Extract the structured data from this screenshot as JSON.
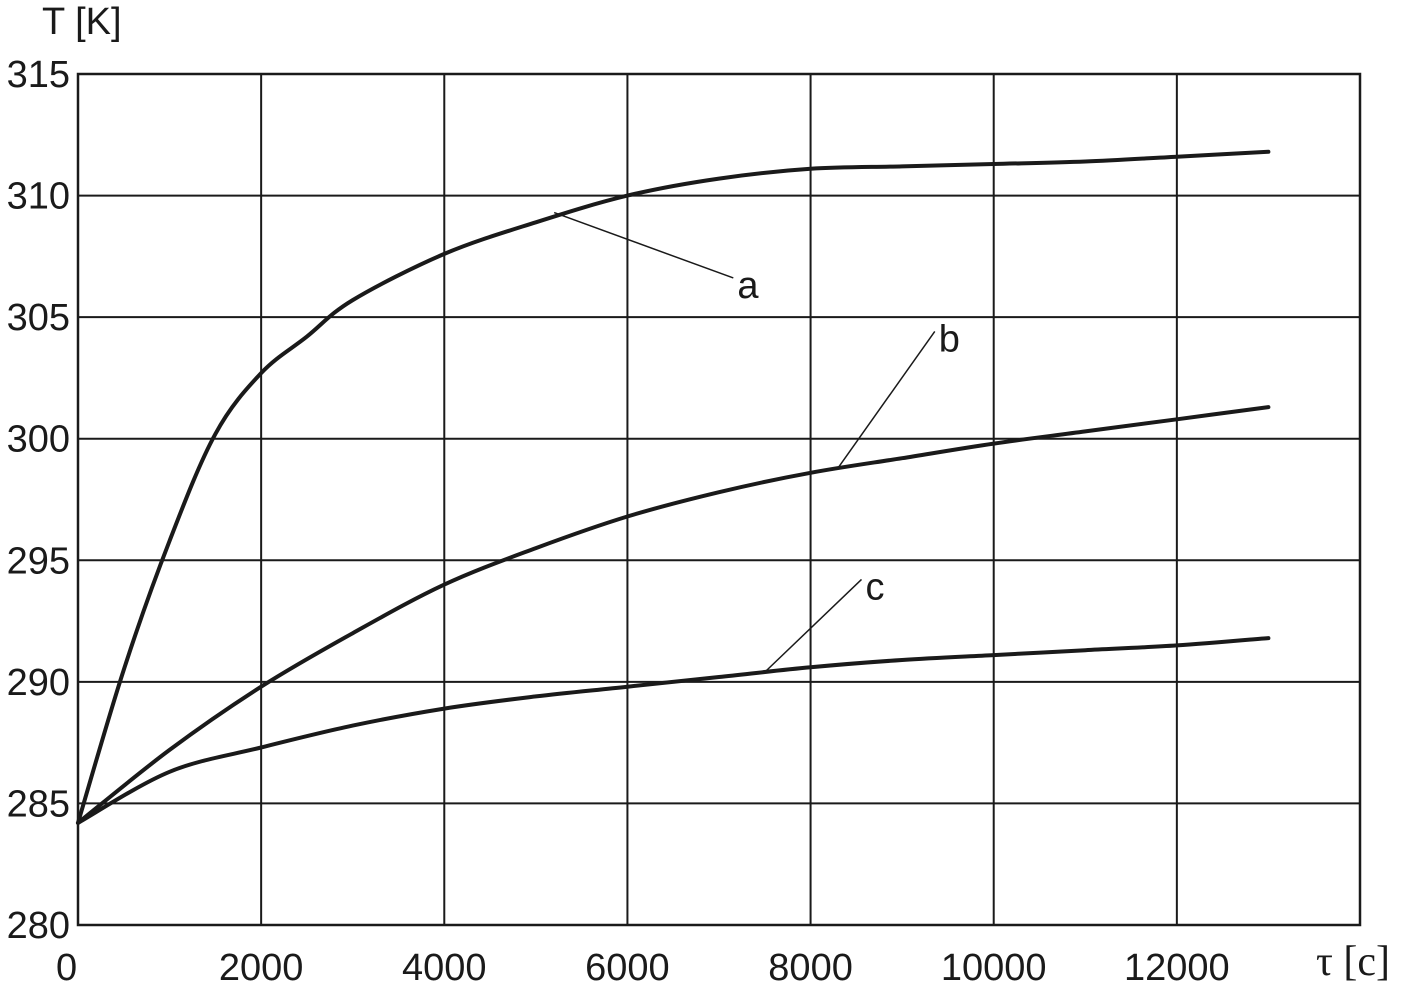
{
  "chart_data": {
    "type": "line",
    "ylabel": "T [K]",
    "xlabel": "τ [c]",
    "xlim": [
      0,
      14000
    ],
    "ylim": [
      280,
      315
    ],
    "x_ticks": [
      0,
      2000,
      4000,
      6000,
      8000,
      10000,
      12000
    ],
    "y_ticks": [
      280,
      285,
      290,
      295,
      300,
      305,
      310,
      315
    ],
    "grid": true,
    "series": [
      {
        "name": "a",
        "x": [
          0,
          500,
          1000,
          1500,
          2000,
          2500,
          3000,
          4000,
          5000,
          6000,
          7000,
          8000,
          9000,
          10000,
          11000,
          12000,
          13000
        ],
        "y": [
          284.2,
          290.5,
          295.8,
          300.2,
          302.7,
          304.2,
          305.7,
          307.6,
          308.9,
          310.0,
          310.7,
          311.1,
          311.2,
          311.3,
          311.4,
          311.6,
          311.8
        ]
      },
      {
        "name": "b",
        "x": [
          0,
          1000,
          2000,
          3000,
          4000,
          5000,
          6000,
          7000,
          8000,
          9000,
          10000,
          11000,
          12000,
          13000
        ],
        "y": [
          284.2,
          287.2,
          289.8,
          292.0,
          294.0,
          295.5,
          296.8,
          297.8,
          298.6,
          299.2,
          299.8,
          300.3,
          300.8,
          301.3
        ]
      },
      {
        "name": "c",
        "x": [
          0,
          1000,
          2000,
          3000,
          4000,
          5000,
          6000,
          7000,
          8000,
          9000,
          10000,
          11000,
          12000,
          13000
        ],
        "y": [
          284.2,
          286.3,
          287.3,
          288.2,
          288.9,
          289.4,
          289.8,
          290.2,
          290.6,
          290.9,
          291.1,
          291.3,
          291.5,
          291.8
        ]
      }
    ],
    "annotations": [
      {
        "text": "a",
        "x": 7200,
        "y": 306.2,
        "target_x": 5200,
        "target_y": 309.3
      },
      {
        "text": "b",
        "x": 9400,
        "y": 304.0,
        "target_x": 8300,
        "target_y": 298.8
      },
      {
        "text": "c",
        "x": 8600,
        "y": 293.8,
        "target_x": 7500,
        "target_y": 290.4
      }
    ]
  }
}
